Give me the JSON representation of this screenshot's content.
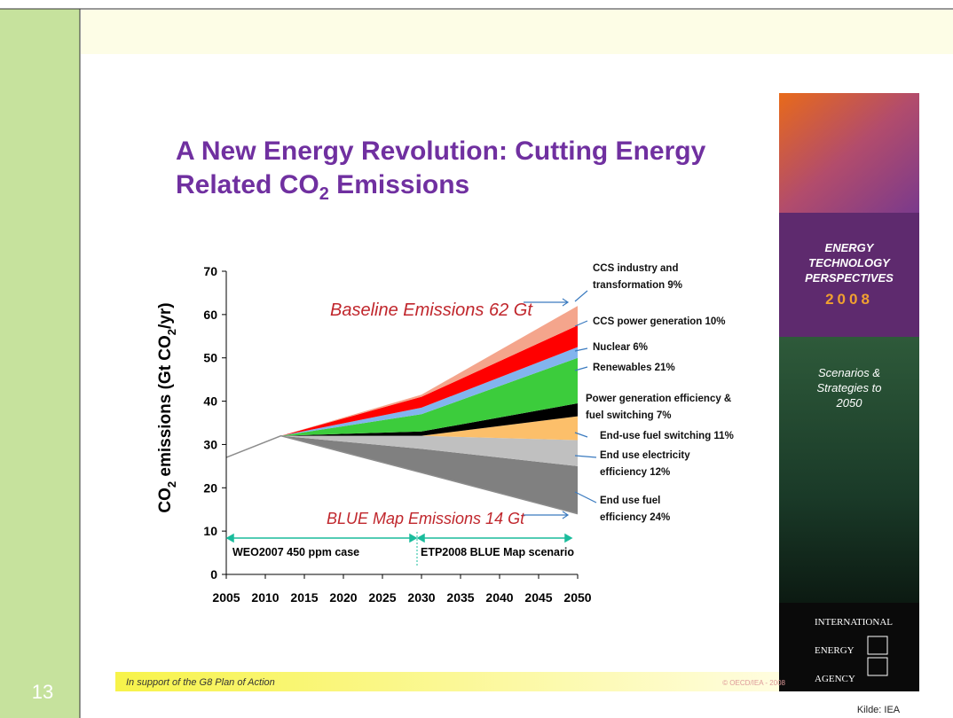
{
  "slide": {
    "number": "13",
    "source": "Kilde: IEA",
    "title_parts": [
      "A New Energy Revolution: Cutting Energy Related CO",
      "2",
      " Emissions"
    ],
    "footer_left": "In support of the G8 Plan of Action",
    "footer_right": "© OECD/IEA - 2008",
    "banner": {
      "heading": "ENERGY TECHNOLOGY PERSPECTIVES",
      "year": "2008",
      "subtitle": "Scenarios & Strategies to 2050",
      "agency": [
        "INTERNATIONAL",
        "ENERGY",
        "AGENCY"
      ]
    }
  },
  "chart_data": {
    "type": "stacked_area",
    "ylabel_parts": [
      "CO",
      "2",
      " emissions (Gt CO",
      "2",
      "/yr)"
    ],
    "x": [
      2005,
      2012,
      2030,
      2050
    ],
    "floor": [
      27,
      32,
      23.5,
      14
    ],
    "series": [
      {
        "name": "End use fuel efficiency 24%",
        "color": "#808080",
        "values": [
          0,
          0,
          5.5,
          11
        ]
      },
      {
        "name": "End use electricity efficiency 12%",
        "color": "#c0c0c0",
        "values": [
          0,
          0,
          3,
          6
        ]
      },
      {
        "name": "End-use fuel switching 11%",
        "color": "#fcbf6a",
        "values": [
          0,
          0,
          0,
          5.5
        ]
      },
      {
        "name": "Power generation efficiency & fuel switching 7%",
        "color": "#000000",
        "values": [
          0,
          0,
          1,
          3
        ]
      },
      {
        "name": "Renewables 21%",
        "color": "#3ccc3c",
        "values": [
          0,
          0,
          4,
          10.5
        ]
      },
      {
        "name": "Nuclear 6%",
        "color": "#82b4ee",
        "values": [
          0,
          0,
          1.5,
          2.5
        ]
      },
      {
        "name": "CCS power generation 10%",
        "color": "#ff0000",
        "values": [
          0,
          0,
          2.5,
          5
        ]
      },
      {
        "name": "CCS industry and transformation 9%",
        "color": "#f4a58c",
        "values": [
          0,
          0,
          0.5,
          4.5
        ]
      }
    ],
    "annotations": [
      "Baseline Emissions 62 Gt",
      "BLUE Map Emissions 14 Gt",
      "WEO2007 450 ppm case",
      "ETP2008 BLUE Map scenario"
    ],
    "xlim": [
      2005,
      2050
    ],
    "xticks": [
      2005,
      2010,
      2015,
      2020,
      2025,
      2030,
      2035,
      2040,
      2045,
      2050
    ],
    "ylim": [
      0,
      70
    ],
    "yticks": [
      0,
      10,
      20,
      30,
      40,
      50,
      60,
      70
    ]
  }
}
